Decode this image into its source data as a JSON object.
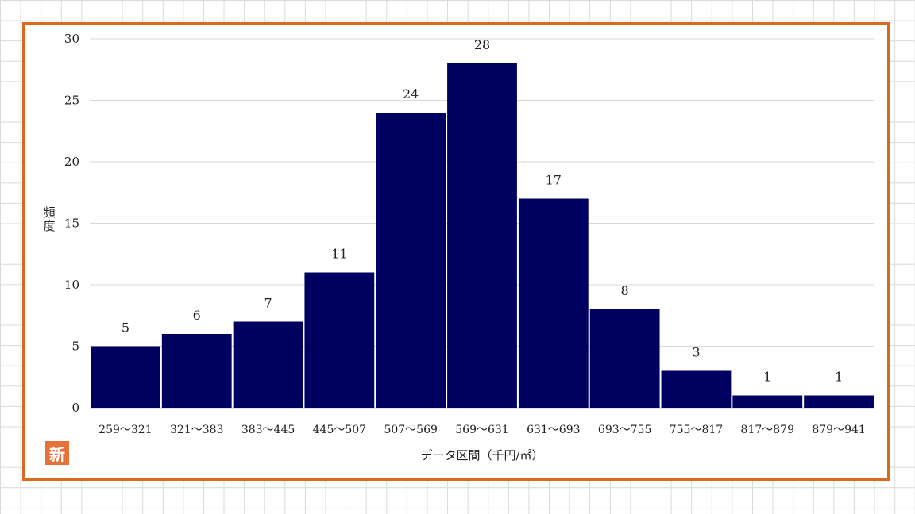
{
  "chart_data": {
    "type": "bar",
    "categories": [
      "259～321",
      "321～383",
      "383～445",
      "445～507",
      "507～569",
      "569～631",
      "631～693",
      "693～755",
      "755～817",
      "817～879",
      "879～941"
    ],
    "values": [
      5,
      6,
      7,
      11,
      24,
      28,
      17,
      8,
      3,
      1,
      1
    ],
    "xlabel": "データ区間（千円/㎡）",
    "ylabel": "頻度",
    "ylim": [
      0,
      30
    ],
    "yticks": [
      0,
      5,
      10,
      15,
      20,
      25,
      30
    ],
    "grid": true,
    "data_labels": true,
    "colors": {
      "bar": "#000060",
      "frame": "#d9691e",
      "grid": "#d9d9d9"
    }
  },
  "stamp": {
    "glyph": "新"
  }
}
